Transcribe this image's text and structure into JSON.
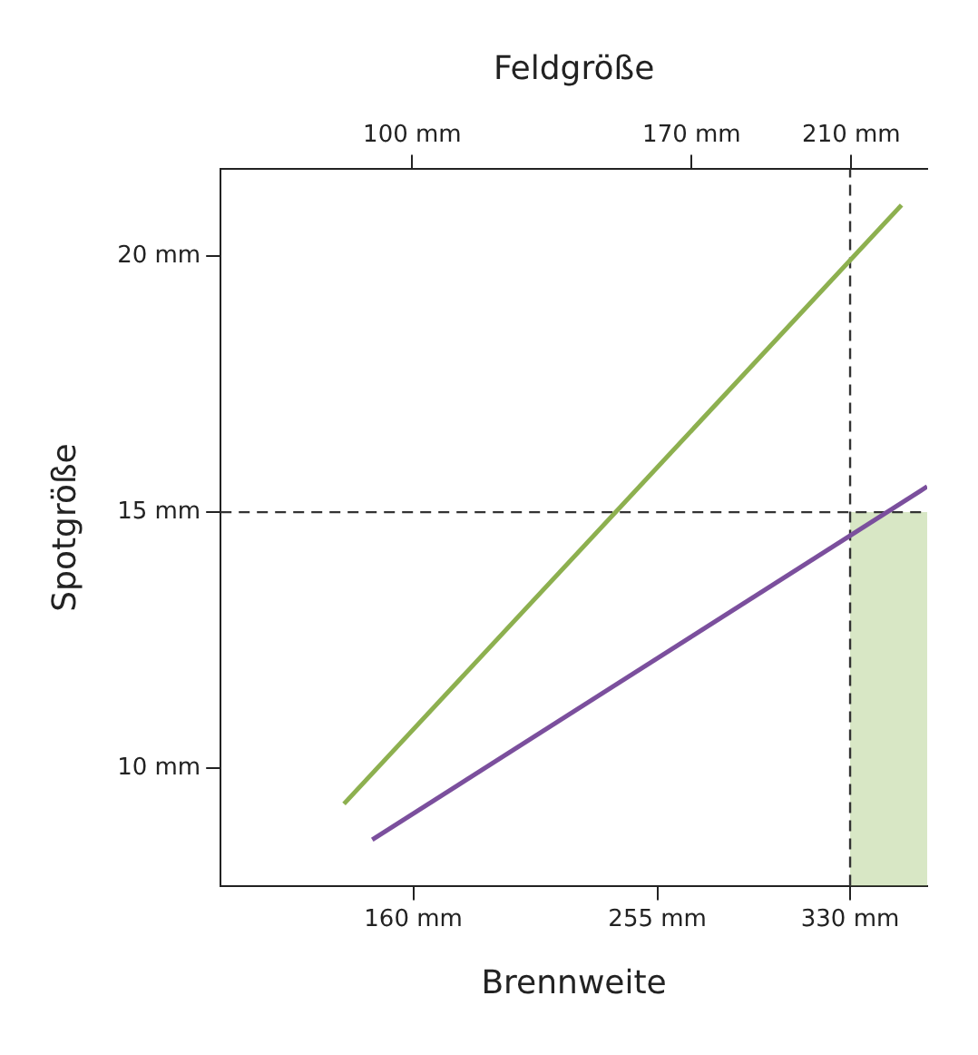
{
  "chart_data": {
    "type": "line",
    "xlabel": "Brennweite",
    "ylabel": "Spotgröße",
    "x2label": "Feldgröße",
    "xlim": [
      85,
      360
    ],
    "xticks": [
      {
        "value": 160,
        "label": "160 mm"
      },
      {
        "value": 255,
        "label": "255 mm"
      },
      {
        "value": 330,
        "label": "330 mm"
      }
    ],
    "x2lim": [
      52,
      229
    ],
    "x2ticks": [
      {
        "value": 100,
        "label": "100 mm"
      },
      {
        "value": 170,
        "label": "170 mm"
      },
      {
        "value": 210,
        "label": "210 mm"
      }
    ],
    "ylim": [
      7.7,
      21.7
    ],
    "yticks": [
      {
        "value": 10,
        "label": "10 mm"
      },
      {
        "value": 15,
        "label": "15 mm"
      },
      {
        "value": 20,
        "label": "20 mm"
      }
    ],
    "series": [
      {
        "color": "#8db04f",
        "x": [
          133,
          350
        ],
        "values": [
          9.3,
          21.0
        ]
      },
      {
        "color": "#7b4f9d",
        "x": [
          144,
          360
        ],
        "values": [
          8.6,
          15.5
        ]
      }
    ],
    "bands": [
      {
        "axis": "x",
        "from": 330,
        "to": 360,
        "color": "#a8c97f"
      }
    ],
    "ref_lines": [
      {
        "axis": "y",
        "value": 15,
        "color": "#333333",
        "line_style": "dashed"
      },
      {
        "axis": "x",
        "value": 330,
        "color": "#333333",
        "line_style": "dashed"
      }
    ],
    "grid": false,
    "legend": false,
    "marker": "none",
    "line_style": "solid"
  }
}
